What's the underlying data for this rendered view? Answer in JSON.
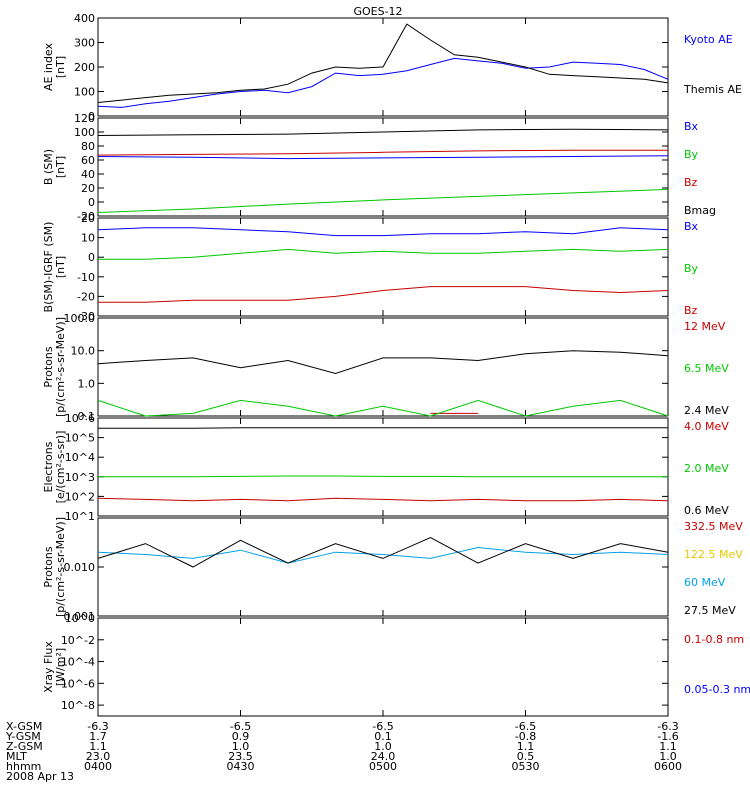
{
  "title": "GOES-12",
  "footer": {
    "row_labels": [
      "X-GSM",
      "Y-GSM",
      "Z-GSM",
      "MLT",
      "hhmm"
    ],
    "date": "2008 Apr 13",
    "columns": [
      [
        "-6.3",
        "1.7",
        "1.1",
        "23.0",
        "0400"
      ],
      [
        "-6.5",
        "0.9",
        "1.0",
        "23.5",
        "0430"
      ],
      [
        "-6.5",
        "0.1",
        "1.0",
        "24.0",
        "0500"
      ],
      [
        "-6.5",
        "-0.8",
        "1.1",
        "0.5",
        "0530"
      ],
      [
        "-6.3",
        "-1.6",
        "1.1",
        "1.0",
        "0600"
      ]
    ]
  },
  "chart_data": [
    {
      "type": "line",
      "ylabel": "AE index\n[nT]",
      "ylim": [
        0,
        400
      ],
      "yticks": [
        "0",
        "100",
        "200",
        "300",
        "400"
      ],
      "x": [
        0,
        5,
        10,
        15,
        20,
        25,
        30,
        35,
        40,
        45,
        50,
        55,
        60,
        65,
        70,
        75,
        80,
        85,
        90,
        95,
        100,
        105,
        110,
        115,
        120
      ],
      "series": [
        {
          "name": "Kyoto AE",
          "color": "#0000ff",
          "values": [
            40,
            35,
            50,
            60,
            75,
            90,
            100,
            105,
            95,
            120,
            175,
            165,
            170,
            185,
            210,
            235,
            225,
            215,
            195,
            200,
            220,
            215,
            210,
            190,
            150
          ]
        },
        {
          "name": "Themis AE",
          "color": "#000000",
          "values": [
            55,
            65,
            75,
            85,
            90,
            95,
            105,
            110,
            130,
            175,
            200,
            195,
            200,
            375,
            310,
            250,
            240,
            220,
            200,
            170,
            165,
            160,
            155,
            150,
            135
          ]
        }
      ]
    },
    {
      "type": "line",
      "ylabel": "B (SM)\n[nT]",
      "ylim": [
        -20,
        120
      ],
      "yticks": [
        "-20",
        "0",
        "20",
        "40",
        "60",
        "80",
        "100",
        "120"
      ],
      "x": [
        0,
        20,
        40,
        60,
        80,
        100,
        120
      ],
      "series": [
        {
          "name": "Bx",
          "color": "#0000ff",
          "values": [
            65,
            64,
            62,
            63,
            64,
            65,
            66
          ]
        },
        {
          "name": "By",
          "color": "#00c800",
          "values": [
            -15,
            -10,
            -3,
            3,
            8,
            13,
            18
          ]
        },
        {
          "name": "Bz",
          "color": "#c80000",
          "values": [
            67,
            68,
            69,
            71,
            73,
            74,
            74
          ]
        },
        {
          "name": "Bmag",
          "color": "#000000",
          "values": [
            95,
            96,
            97,
            100,
            103,
            104,
            103
          ]
        }
      ]
    },
    {
      "type": "line",
      "ylabel": "B(SM)-IGRF (SM)\n[nT]",
      "ylim": [
        -30,
        20
      ],
      "yticks": [
        "-30",
        "-20",
        "-10",
        "0",
        "10",
        "20"
      ],
      "x": [
        0,
        10,
        20,
        30,
        40,
        50,
        60,
        70,
        80,
        90,
        100,
        110,
        120
      ],
      "series": [
        {
          "name": "Bx",
          "color": "#0000ff",
          "values": [
            14,
            15,
            15,
            14,
            13,
            11,
            11,
            12,
            12,
            13,
            12,
            15,
            14
          ]
        },
        {
          "name": "By",
          "color": "#00c800",
          "values": [
            -1,
            -1,
            0,
            2,
            4,
            2,
            3,
            2,
            2,
            3,
            4,
            3,
            4
          ]
        },
        {
          "name": "Bz",
          "color": "#c80000",
          "values": [
            -23,
            -23,
            -22,
            -22,
            -22,
            -20,
            -17,
            -15,
            -15,
            -15,
            -17,
            -18,
            -17
          ]
        }
      ]
    },
    {
      "type": "line",
      "scale": "log",
      "ylabel": "Protons\n[p/(cm²-s-sr-MeV)]",
      "ylim": [
        0.1,
        100
      ],
      "yticks": [
        "0.1",
        "1.0",
        "10.0",
        "100.0"
      ],
      "x": [
        0,
        10,
        20,
        30,
        40,
        50,
        60,
        70,
        80,
        90,
        100,
        110,
        120
      ],
      "series": [
        {
          "name": "12 MeV",
          "color": "#c80000",
          "values": [
            null,
            null,
            null,
            null,
            null,
            null,
            null,
            0.12,
            0.12,
            null,
            0.12,
            null,
            0.12
          ]
        },
        {
          "name": "6.5 MeV",
          "color": "#00c800",
          "values": [
            0.3,
            0.1,
            0.12,
            0.3,
            0.2,
            0.1,
            0.2,
            0.1,
            0.3,
            0.1,
            0.2,
            0.3,
            0.1
          ]
        },
        {
          "name": "2.4 MeV",
          "color": "#000000",
          "values": [
            4,
            5,
            6,
            3,
            5,
            2,
            6,
            6,
            5,
            8,
            10,
            9,
            7
          ]
        }
      ]
    },
    {
      "type": "line",
      "scale": "log",
      "ylabel": "Electrons\n[e/(cm²-s-sr)]",
      "ylim": [
        10,
        1000000
      ],
      "yticks": [
        "10^1",
        "10^2",
        "10^3",
        "10^4",
        "10^5",
        "10^6"
      ],
      "x": [
        0,
        10,
        20,
        30,
        40,
        50,
        60,
        70,
        80,
        90,
        100,
        110,
        120
      ],
      "series": [
        {
          "name": "4.0 MeV",
          "color": "#c80000",
          "values": [
            80,
            70,
            60,
            70,
            60,
            80,
            70,
            60,
            70,
            60,
            60,
            70,
            60
          ]
        },
        {
          "name": "2.0 MeV",
          "color": "#00c800",
          "values": [
            1000,
            1000,
            1000,
            1050,
            1100,
            1100,
            1050,
            1050,
            1000,
            1000,
            1000,
            1000,
            1000
          ]
        },
        {
          "name": "0.6 MeV",
          "color": "#000000",
          "values": [
            300000,
            300000,
            300000,
            320000,
            320000,
            320000,
            320000,
            320000,
            320000,
            320000,
            320000,
            320000,
            320000
          ]
        }
      ]
    },
    {
      "type": "line",
      "scale": "log",
      "ylabel": "Protons\n[p/(cm²-s-sr-MeV)]",
      "ylim": [
        0.001,
        0.1
      ],
      "yticks": [
        "0.001",
        "0.010"
      ],
      "x": [
        0,
        10,
        20,
        30,
        40,
        50,
        60,
        70,
        80,
        90,
        100,
        110,
        120
      ],
      "series": [
        {
          "name": "332.5 MeV",
          "color": "#c80000",
          "values": [
            null,
            null,
            null,
            null,
            null,
            null,
            null,
            null,
            null,
            null,
            null,
            null,
            null
          ]
        },
        {
          "name": "122.5 MeV",
          "color": "#e6c800",
          "values": [
            null,
            null,
            null,
            null,
            null,
            null,
            null,
            null,
            null,
            null,
            null,
            null,
            null
          ]
        },
        {
          "name": "60 MeV",
          "color": "#00a0e6",
          "values": [
            0.02,
            0.018,
            0.015,
            0.022,
            0.012,
            0.02,
            0.018,
            0.015,
            0.025,
            0.02,
            0.018,
            0.02,
            0.018
          ]
        },
        {
          "name": "27.5 MeV",
          "color": "#000000",
          "values": [
            0.015,
            0.03,
            0.01,
            0.035,
            0.012,
            0.03,
            0.015,
            0.04,
            0.012,
            0.03,
            0.015,
            0.03,
            0.02
          ]
        }
      ]
    },
    {
      "type": "line",
      "scale": "log",
      "ylabel": "Xray Flux\n[W/m²]",
      "ylim": [
        1e-09,
        1
      ],
      "yticks": [
        "10^-8",
        "10^-6",
        "10^-4",
        "10^-2",
        "10^0"
      ],
      "x": [],
      "series": [
        {
          "name": "0.1-0.8 nm",
          "color": "#c80000",
          "values": []
        },
        {
          "name": "0.05-0.3 nm",
          "color": "#0000ff",
          "values": []
        }
      ]
    }
  ]
}
